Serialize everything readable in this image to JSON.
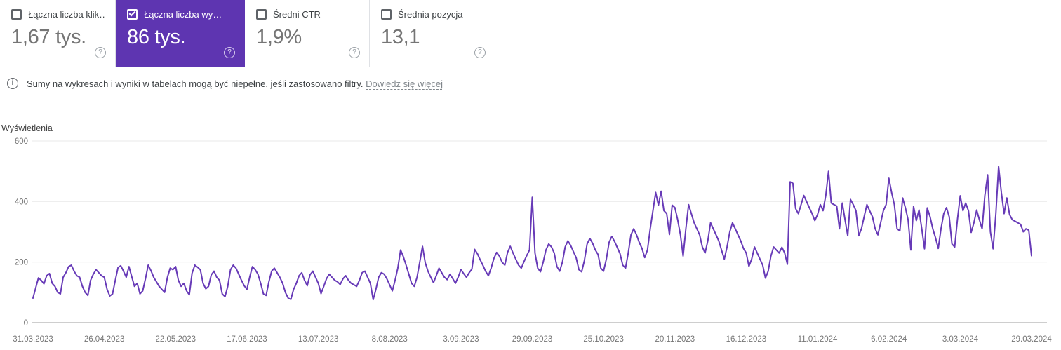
{
  "metrics": {
    "cards": [
      {
        "label": "Łączna liczba klik…",
        "value": "1,67 tys.",
        "checked": false,
        "selected": false,
        "help_icon": "question-mark-circle"
      },
      {
        "label": "Łączna liczba wy…",
        "value": "86 tys.",
        "checked": true,
        "selected": true,
        "help_icon": "question-mark-circle",
        "accent_color": "#5e35b1"
      },
      {
        "label": "Średni CTR",
        "value": "1,9%",
        "checked": false,
        "selected": false,
        "help_icon": "question-mark-circle"
      },
      {
        "label": "Średnia pozycja",
        "value": "13,1",
        "checked": false,
        "selected": false,
        "help_icon": "question-mark-circle"
      }
    ]
  },
  "info_banner": {
    "icon": "info-circle",
    "text": "Sumy na wykresach i wyniki w tabelach mogą być niepełne, jeśli zastosowano filtry.",
    "link_label": "Dowiedz się więcej"
  },
  "chart_data": {
    "type": "line",
    "title": "Wyświetlenia",
    "series_name": "Wyświetlenia",
    "line_color": "#673ab7",
    "grid": true,
    "ylim": [
      0,
      600
    ],
    "y_ticks": [
      600,
      400,
      200,
      0
    ],
    "x_tick_labels": [
      "31.03.2023",
      "26.04.2023",
      "22.05.2023",
      "17.06.2023",
      "13.07.2023",
      "8.08.2023",
      "3.09.2023",
      "29.09.2023",
      "25.10.2023",
      "20.11.2023",
      "16.12.2023",
      "11.01.2024",
      "6.02.2024",
      "3.03.2024",
      "29.03.2024"
    ],
    "x_unit": "day",
    "values": [
      81,
      115,
      148,
      140,
      128,
      155,
      162,
      130,
      120,
      100,
      95,
      150,
      165,
      185,
      190,
      170,
      155,
      150,
      120,
      100,
      90,
      140,
      160,
      175,
      165,
      155,
      150,
      110,
      88,
      95,
      140,
      182,
      188,
      170,
      150,
      185,
      152,
      120,
      130,
      95,
      105,
      145,
      190,
      172,
      150,
      135,
      120,
      110,
      100,
      150,
      180,
      175,
      185,
      140,
      120,
      130,
      105,
      92,
      163,
      190,
      183,
      175,
      130,
      112,
      120,
      158,
      170,
      150,
      140,
      95,
      86,
      120,
      175,
      190,
      180,
      160,
      140,
      122,
      110,
      150,
      185,
      175,
      160,
      130,
      95,
      90,
      135,
      170,
      180,
      165,
      150,
      130,
      100,
      81,
      77,
      110,
      130,
      155,
      165,
      140,
      122,
      158,
      170,
      150,
      130,
      96,
      120,
      145,
      160,
      150,
      140,
      135,
      126,
      145,
      155,
      140,
      130,
      125,
      120,
      140,
      165,
      170,
      150,
      130,
      76,
      110,
      150,
      165,
      160,
      145,
      125,
      105,
      140,
      180,
      240,
      218,
      190,
      160,
      130,
      120,
      150,
      200,
      252,
      198,
      170,
      150,
      132,
      155,
      180,
      165,
      150,
      142,
      160,
      146,
      130,
      150,
      175,
      162,
      150,
      165,
      177,
      242,
      228,
      208,
      190,
      170,
      155,
      180,
      212,
      232,
      220,
      200,
      190,
      232,
      252,
      230,
      210,
      190,
      180,
      202,
      222,
      240,
      414,
      230,
      180,
      168,
      200,
      240,
      260,
      250,
      230,
      185,
      170,
      200,
      250,
      270,
      255,
      235,
      215,
      175,
      168,
      205,
      260,
      278,
      262,
      240,
      225,
      180,
      170,
      210,
      265,
      285,
      268,
      248,
      228,
      190,
      180,
      230,
      290,
      310,
      290,
      265,
      245,
      215,
      240,
      310,
      370,
      430,
      388,
      434,
      370,
      360,
      291,
      388,
      380,
      340,
      291,
      220,
      310,
      390,
      360,
      330,
      310,
      290,
      250,
      230,
      270,
      330,
      310,
      290,
      270,
      240,
      210,
      250,
      300,
      330,
      310,
      290,
      270,
      245,
      230,
      186,
      210,
      250,
      230,
      210,
      190,
      147,
      170,
      220,
      250,
      240,
      230,
      249,
      230,
      193,
      465,
      460,
      377,
      360,
      390,
      420,
      400,
      380,
      360,
      337,
      357,
      390,
      370,
      420,
      500,
      395,
      390,
      385,
      310,
      395,
      340,
      287,
      407,
      390,
      370,
      287,
      310,
      350,
      390,
      370,
      350,
      310,
      290,
      330,
      370,
      390,
      477,
      430,
      390,
      310,
      303,
      412,
      380,
      340,
      240,
      384,
      337,
      372,
      310,
      244,
      379,
      350,
      310,
      280,
      245,
      310,
      360,
      380,
      350,
      260,
      250,
      340,
      419,
      370,
      395,
      370,
      298,
      330,
      372,
      340,
      310,
      420,
      488,
      300,
      244,
      360,
      516,
      430,
      360,
      412,
      357,
      340,
      335,
      330,
      325,
      300,
      310,
      305,
      221
    ]
  }
}
